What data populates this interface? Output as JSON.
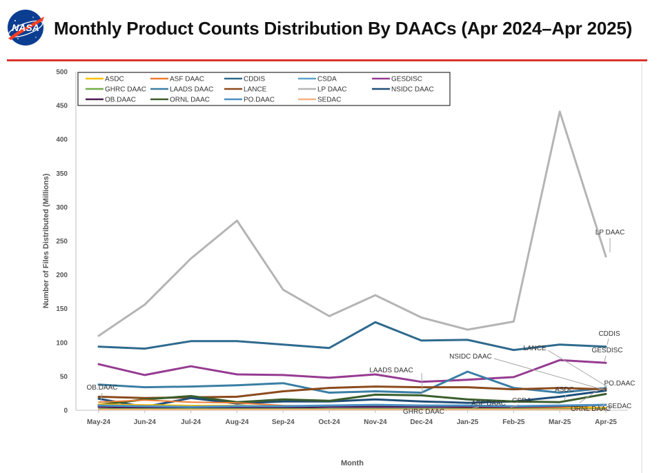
{
  "page": {
    "title": "Monthly Product Counts Distribution By DAACs (Apr 2024–Apr 2025)",
    "logo_text": "NASA"
  },
  "chart_data": {
    "type": "line",
    "title": "Monthly Product Counts Distribution By DAACs (Apr 2024–Apr 2025)",
    "xlabel": "Month",
    "ylabel": "Number of Files Distributed (Millions)",
    "ylim": [
      0,
      500
    ],
    "yticks": [
      0,
      50,
      100,
      150,
      200,
      250,
      300,
      350,
      400,
      450,
      500
    ],
    "grid": false,
    "legend_position": "top-left",
    "categories": [
      "May-24",
      "Jun-24",
      "Jul-24",
      "Aug-24",
      "Sep-24",
      "Oct-24",
      "Nov-24",
      "Dec-24",
      "Jan-25",
      "Feb-25",
      "Mar-25",
      "Apr-25"
    ],
    "series": [
      {
        "name": "ASDC",
        "color": "#ffc000",
        "width": 2,
        "values": [
          9,
          8,
          7,
          7,
          6,
          6,
          6,
          5,
          6,
          5,
          5,
          4
        ]
      },
      {
        "name": "ASF DAAC",
        "color": "#ed7d31",
        "width": 2,
        "values": [
          12,
          15,
          12,
          11,
          7,
          6,
          6,
          5,
          4,
          3,
          3,
          3
        ]
      },
      {
        "name": "CDDIS",
        "color": "#2e6a8e",
        "width": 3,
        "values": [
          94,
          91,
          102,
          102,
          97,
          92,
          130,
          103,
          104,
          89,
          97,
          94
        ]
      },
      {
        "name": "CSDA",
        "color": "#5fa2c9",
        "width": 2,
        "values": [
          1,
          1,
          1,
          1,
          1,
          1,
          1,
          1,
          1,
          1,
          1,
          1
        ]
      },
      {
        "name": "GESDISC",
        "color": "#953b91",
        "width": 3,
        "values": [
          68,
          52,
          65,
          53,
          52,
          48,
          53,
          42,
          45,
          49,
          74,
          70
        ]
      },
      {
        "name": "GHRC DAAC",
        "color": "#70ad47",
        "width": 2,
        "values": [
          2,
          2,
          2,
          2,
          2,
          2,
          2,
          2,
          2,
          2,
          2,
          2
        ]
      },
      {
        "name": "LAADS DAAC",
        "color": "#3a7ea4",
        "width": 3,
        "values": [
          38,
          34,
          35,
          37,
          40,
          26,
          28,
          26,
          57,
          33,
          26,
          33
        ]
      },
      {
        "name": "LANCE",
        "color": "#8b4a1c",
        "width": 3,
        "values": [
          20,
          18,
          19,
          20,
          28,
          33,
          35,
          34,
          34,
          31,
          33,
          31
        ]
      },
      {
        "name": "LP DAAC",
        "color": "#b4b4b4",
        "width": 3,
        "values": [
          110,
          156,
          224,
          280,
          178,
          139,
          170,
          137,
          119,
          131,
          441,
          227
        ]
      },
      {
        "name": "NSIDC DAAC",
        "color": "#1f4e79",
        "width": 3,
        "values": [
          17,
          5,
          18,
          10,
          13,
          13,
          16,
          13,
          11,
          13,
          20,
          29
        ]
      },
      {
        "name": "OB.DAAC",
        "color": "#4b1a4f",
        "width": 3,
        "values": [
          5,
          4,
          4,
          4,
          4,
          5,
          5,
          5,
          5,
          5,
          6,
          8
        ]
      },
      {
        "name": "ORNL DAAC",
        "color": "#3b5e2b",
        "width": 3,
        "values": [
          8,
          16,
          21,
          12,
          16,
          14,
          23,
          22,
          16,
          13,
          12,
          24
        ]
      },
      {
        "name": "PO.DAAC",
        "color": "#4a90c2",
        "width": 3,
        "values": [
          7,
          6,
          5,
          6,
          6,
          7,
          8,
          7,
          7,
          6,
          7,
          8
        ]
      },
      {
        "name": "SEDAC",
        "color": "#f4b183",
        "width": 2,
        "values": [
          1,
          1,
          1,
          1,
          1,
          1,
          1,
          1,
          1,
          1,
          1,
          1
        ]
      }
    ],
    "annotations": [
      {
        "text": "LP DAAC",
        "series": "LP DAAC"
      },
      {
        "text": "CDDIS",
        "series": "CDDIS"
      },
      {
        "text": "GESDISC",
        "series": "GESDISC"
      },
      {
        "text": "LANCE",
        "series": "LANCE"
      },
      {
        "text": "NSIDC DAAC",
        "series": "NSIDC DAAC"
      },
      {
        "text": "LAADS DAAC",
        "series": "LAADS DAAC"
      },
      {
        "text": "PO.DAAC",
        "series": "PO.DAAC"
      },
      {
        "text": "OB.DAAC",
        "series": "OB.DAAC"
      },
      {
        "text": "ASDC",
        "series": "ASDC"
      },
      {
        "text": "CSDA",
        "series": "CSDA"
      },
      {
        "text": "ASF DAAC",
        "series": "ASF DAAC"
      },
      {
        "text": "GHRC DAAC",
        "series": "GHRC DAAC"
      },
      {
        "text": "ORNL DAAC",
        "series": "ORNL DAAC"
      },
      {
        "text": "SEDAC",
        "series": "SEDAC"
      }
    ]
  }
}
